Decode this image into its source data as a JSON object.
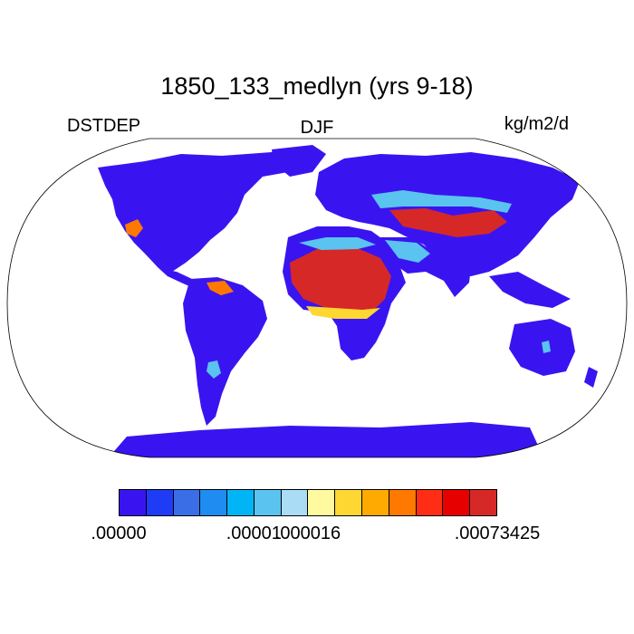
{
  "title": "1850_133_medlyn (yrs 9-18)",
  "left_label": "DSTDEP",
  "center_label": "DJF",
  "right_label": "kg/m2/d",
  "colorbar": {
    "colors": [
      "#3a14f0",
      "#1e3cf5",
      "#3a6ee6",
      "#1e8cf0",
      "#00b4f5",
      "#5ac3f0",
      "#aadcf5",
      "#fffaa0",
      "#ffd732",
      "#ffaa00",
      "#ff7800",
      "#ff2d14",
      "#e60000",
      "#d72828"
    ],
    "labels": [
      {
        "text": ".00000",
        "boundary": 0
      },
      {
        "text": ".00001",
        "boundary": 5
      },
      {
        "text": ".000016",
        "boundary": 7
      },
      {
        "text": ".00073425",
        "boundary": 14
      }
    ]
  }
}
